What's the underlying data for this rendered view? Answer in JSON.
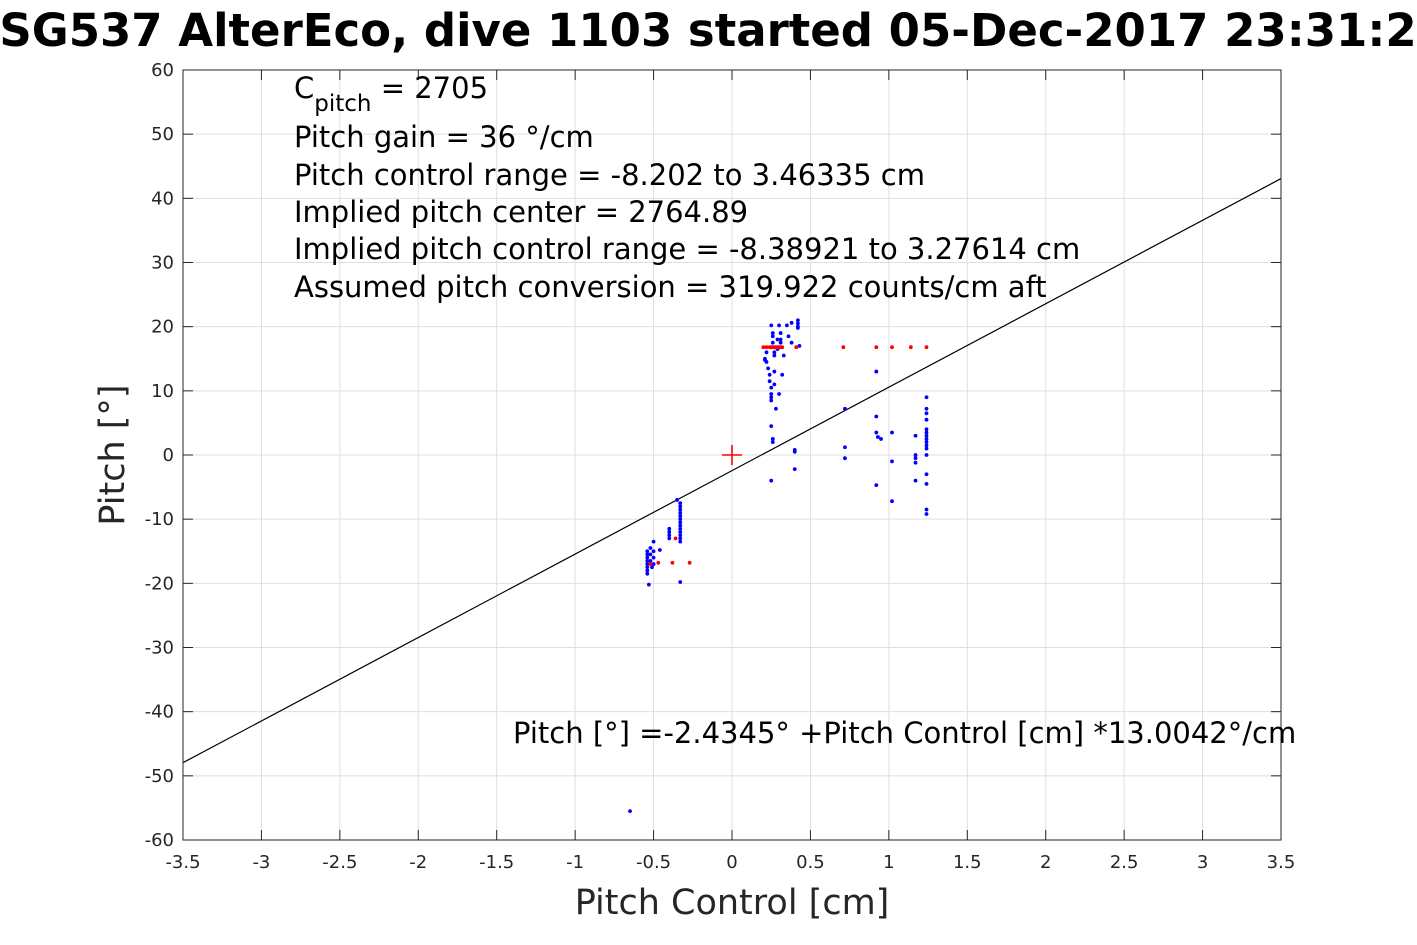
{
  "chart_data": {
    "type": "scatter",
    "title": "SG537 AlterEco, dive 1103 started 05-Dec-2017 23:31:2",
    "xlabel": "Pitch Control [cm]",
    "ylabel": "Pitch [°]",
    "xlim": [
      -3.5,
      3.5
    ],
    "ylim": [
      -60,
      60
    ],
    "xticks": [
      -3.5,
      -3,
      -2.5,
      -2,
      -1.5,
      -1,
      -0.5,
      0,
      0.5,
      1,
      1.5,
      2,
      2.5,
      3,
      3.5
    ],
    "xtick_labels": [
      "-3.5",
      "-3",
      "-2.5",
      "-2",
      "-1.5",
      "-1",
      "-0.5",
      "0",
      "0.5",
      "1",
      "1.5",
      "2",
      "2.5",
      "3",
      "3.5"
    ],
    "yticks": [
      -60,
      -50,
      -40,
      -30,
      -20,
      -10,
      0,
      10,
      20,
      30,
      40,
      50,
      60
    ],
    "ytick_labels": [
      "-60",
      "-50",
      "-40",
      "-30",
      "-20",
      "-10",
      "0",
      "10",
      "20",
      "30",
      "40",
      "50",
      "60"
    ],
    "grid": true,
    "annotations": {
      "cpitch_base": "C",
      "cpitch_sub": "pitch",
      "cpitch_value": " = 2705",
      "lines": [
        "Pitch gain = 36 °/cm",
        "Pitch control range = -8.202 to 3.46335 cm",
        "Implied pitch center = 2764.89",
        "Implied pitch control range = -8.38921 to 3.27614 cm",
        "Assumed pitch conversion = 319.922 counts/cm aft"
      ],
      "equation": "Pitch [°] =-2.4345° +Pitch Control [cm] *13.0042°/cm"
    },
    "fit_line": {
      "intercept": -2.4345,
      "slope": 13.0042,
      "color": "#000000"
    },
    "center_marker": {
      "x": 0,
      "y": 0,
      "color": "#ff0000"
    },
    "series": [
      {
        "color": "#0000ff",
        "points": [
          [
            -0.54,
            -15
          ],
          [
            -0.54,
            -15.5
          ],
          [
            -0.54,
            -16
          ],
          [
            -0.54,
            -16.5
          ],
          [
            -0.54,
            -17
          ],
          [
            -0.54,
            -17.5
          ],
          [
            -0.54,
            -18
          ],
          [
            -0.54,
            -18.5
          ],
          [
            -0.53,
            -20.2
          ],
          [
            -0.52,
            -14.5
          ],
          [
            -0.52,
            -15.5
          ],
          [
            -0.52,
            -16.5
          ],
          [
            -0.51,
            -17.5
          ],
          [
            -0.5,
            -13.5
          ],
          [
            -0.5,
            -15
          ],
          [
            -0.5,
            -16
          ],
          [
            -0.5,
            -17
          ],
          [
            -0.46,
            -14.8
          ],
          [
            -0.4,
            -11.5
          ],
          [
            -0.4,
            -12
          ],
          [
            -0.4,
            -12.5
          ],
          [
            -0.4,
            -13
          ],
          [
            -0.35,
            -7
          ],
          [
            -0.33,
            -7.5
          ],
          [
            -0.33,
            -8
          ],
          [
            -0.33,
            -8.5
          ],
          [
            -0.33,
            -9
          ],
          [
            -0.33,
            -9.5
          ],
          [
            -0.33,
            -10
          ],
          [
            -0.33,
            -10.5
          ],
          [
            -0.33,
            -11
          ],
          [
            -0.33,
            -11.5
          ],
          [
            -0.33,
            -12
          ],
          [
            -0.33,
            -12.5
          ],
          [
            -0.33,
            -13
          ],
          [
            -0.33,
            -13.5
          ],
          [
            -0.33,
            -19.8
          ],
          [
            -0.65,
            -55.5
          ],
          [
            0.21,
            15
          ],
          [
            0.21,
            14.8
          ],
          [
            0.22,
            14.5
          ],
          [
            0.22,
            16
          ],
          [
            0.23,
            13.5
          ],
          [
            0.24,
            12.5
          ],
          [
            0.24,
            11.5
          ],
          [
            0.25,
            10.5
          ],
          [
            0.25,
            9.5
          ],
          [
            0.25,
            9
          ],
          [
            0.25,
            8.5
          ],
          [
            0.25,
            4.5
          ],
          [
            0.26,
            2.5
          ],
          [
            0.26,
            2
          ],
          [
            0.25,
            -4
          ],
          [
            0.25,
            20.2
          ],
          [
            0.26,
            19
          ],
          [
            0.26,
            18.5
          ],
          [
            0.26,
            17.5
          ],
          [
            0.27,
            16
          ],
          [
            0.27,
            15.5
          ],
          [
            0.27,
            13
          ],
          [
            0.27,
            11
          ],
          [
            0.28,
            7.2
          ],
          [
            0.29,
            18
          ],
          [
            0.29,
            16.5
          ],
          [
            0.3,
            9.5
          ],
          [
            0.3,
            20.2
          ],
          [
            0.31,
            19
          ],
          [
            0.31,
            18
          ],
          [
            0.31,
            17.5
          ],
          [
            0.32,
            12.5
          ],
          [
            0.33,
            15.5
          ],
          [
            0.35,
            20.2
          ],
          [
            0.36,
            18.5
          ],
          [
            0.38,
            17.5
          ],
          [
            0.38,
            20.6
          ],
          [
            0.4,
            0.8
          ],
          [
            0.4,
            0.5
          ],
          [
            0.4,
            -2.2
          ],
          [
            0.42,
            21
          ],
          [
            0.42,
            20.5
          ],
          [
            0.42,
            20
          ],
          [
            0.42,
            19.8
          ],
          [
            0.43,
            17
          ],
          [
            0.72,
            7.2
          ],
          [
            0.72,
            1.2
          ],
          [
            0.72,
            -0.5
          ],
          [
            0.92,
            13
          ],
          [
            0.92,
            6
          ],
          [
            0.92,
            3.5
          ],
          [
            0.92,
            -4.7
          ],
          [
            0.93,
            2.8
          ],
          [
            0.95,
            2.5
          ],
          [
            1.02,
            3.5
          ],
          [
            1.02,
            -1
          ],
          [
            1.02,
            -7.2
          ],
          [
            1.17,
            3
          ],
          [
            1.17,
            0
          ],
          [
            1.17,
            -0.5
          ],
          [
            1.17,
            -1.2
          ],
          [
            1.17,
            -4
          ],
          [
            1.24,
            9
          ],
          [
            1.24,
            7.2
          ],
          [
            1.24,
            6.5
          ],
          [
            1.24,
            5.5
          ],
          [
            1.24,
            4
          ],
          [
            1.24,
            3.5
          ],
          [
            1.24,
            3
          ],
          [
            1.24,
            2.5
          ],
          [
            1.24,
            2
          ],
          [
            1.24,
            1.5
          ],
          [
            1.24,
            1
          ],
          [
            1.24,
            0
          ],
          [
            1.24,
            -3
          ],
          [
            1.24,
            -4.5
          ],
          [
            1.24,
            -8.5
          ],
          [
            1.24,
            -9.2
          ]
        ]
      },
      {
        "color": "#ff0000",
        "points": [
          [
            -0.52,
            -17
          ],
          [
            -0.47,
            -16.8
          ],
          [
            -0.38,
            -16.8
          ],
          [
            -0.36,
            -13
          ],
          [
            -0.27,
            -16.8
          ],
          [
            0.2,
            16.8
          ],
          [
            0.22,
            16.8
          ],
          [
            0.24,
            16.8
          ],
          [
            0.25,
            16.8
          ],
          [
            0.26,
            16.8
          ],
          [
            0.27,
            16.8
          ],
          [
            0.28,
            16.8
          ],
          [
            0.29,
            16.8
          ],
          [
            0.3,
            16.8
          ],
          [
            0.31,
            16.8
          ],
          [
            0.32,
            16.8
          ],
          [
            0.41,
            16.8
          ],
          [
            0.71,
            16.8
          ],
          [
            0.92,
            16.8
          ],
          [
            1.02,
            16.8
          ],
          [
            1.14,
            16.8
          ],
          [
            1.24,
            16.8
          ]
        ]
      }
    ]
  }
}
